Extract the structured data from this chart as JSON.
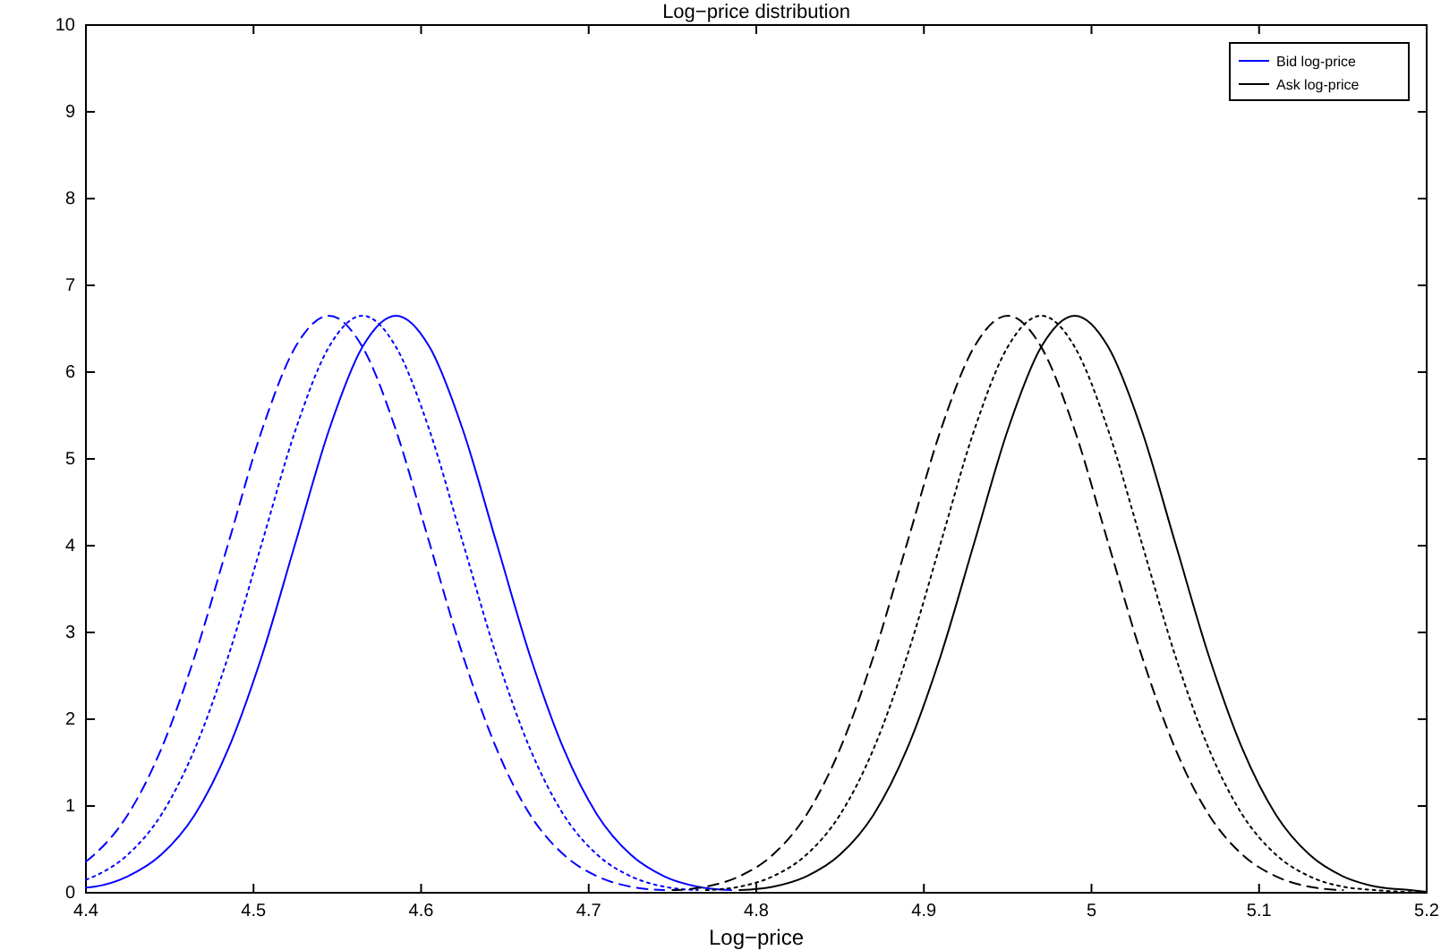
{
  "chart_data": {
    "type": "line",
    "title": "Log−price distribution",
    "xlabel": "Log−price",
    "xlim": [
      4.4,
      5.2
    ],
    "xticks": [
      4.4,
      4.5,
      4.6,
      4.7,
      4.8,
      4.9,
      5,
      5.1,
      5.2
    ],
    "ylim": [
      0,
      10
    ],
    "yticks": [
      0,
      1,
      2,
      3,
      4,
      5,
      6,
      7,
      8,
      9,
      10
    ],
    "grid": false,
    "legend": "top right",
    "marker": "none",
    "series": [
      {
        "name": "Bid log-price",
        "color": "#0000ff",
        "line_style": "solid",
        "x": [
          4.4,
          4.405,
          4.425,
          4.445,
          4.465,
          4.485,
          4.505,
          4.525,
          4.545,
          4.565,
          4.585,
          4.605,
          4.625,
          4.645,
          4.665,
          4.685,
          4.705,
          4.725,
          4.745,
          4.765,
          4.785
        ],
        "values": [
          0.06,
          0.07,
          0.19,
          0.44,
          0.9,
          1.66,
          2.73,
          4.03,
          5.33,
          6.29,
          6.65,
          6.29,
          5.33,
          4.03,
          2.73,
          1.66,
          0.9,
          0.44,
          0.19,
          0.07,
          0.03
        ]
      },
      {
        "color": "#0000ff",
        "line_style": "dotted",
        "x": [
          4.4,
          4.405,
          4.425,
          4.445,
          4.465,
          4.485,
          4.505,
          4.525,
          4.545,
          4.565,
          4.585,
          4.605,
          4.625,
          4.645,
          4.665,
          4.685,
          4.705,
          4.725,
          4.745,
          4.765
        ],
        "values": [
          0.15,
          0.19,
          0.44,
          0.9,
          1.66,
          2.73,
          4.03,
          5.33,
          6.29,
          6.65,
          6.29,
          5.33,
          4.03,
          2.73,
          1.66,
          0.9,
          0.44,
          0.19,
          0.07,
          0.03
        ]
      },
      {
        "color": "#0000ff",
        "line_style": "dashed",
        "x": [
          4.4,
          4.405,
          4.425,
          4.445,
          4.465,
          4.485,
          4.505,
          4.525,
          4.545,
          4.565,
          4.585,
          4.605,
          4.625,
          4.645,
          4.665,
          4.685,
          4.705,
          4.725,
          4.745
        ],
        "values": [
          0.36,
          0.44,
          0.9,
          1.66,
          2.73,
          4.03,
          5.33,
          6.29,
          6.65,
          6.29,
          5.33,
          4.03,
          2.73,
          1.66,
          0.9,
          0.44,
          0.19,
          0.07,
          0.03
        ]
      },
      {
        "name": "Ask log-price",
        "color": "#000000",
        "line_style": "solid",
        "x": [
          4.79,
          4.81,
          4.83,
          4.85,
          4.87,
          4.89,
          4.91,
          4.93,
          4.95,
          4.97,
          4.99,
          5.01,
          5.03,
          5.05,
          5.07,
          5.09,
          5.11,
          5.13,
          5.15,
          5.17,
          5.19,
          5.2
        ],
        "values": [
          0.03,
          0.07,
          0.19,
          0.44,
          0.9,
          1.66,
          2.73,
          4.03,
          5.33,
          6.29,
          6.65,
          6.29,
          5.33,
          4.03,
          2.73,
          1.66,
          0.9,
          0.44,
          0.19,
          0.07,
          0.03,
          0.01
        ]
      },
      {
        "color": "#000000",
        "line_style": "dotted",
        "x": [
          4.77,
          4.79,
          4.81,
          4.83,
          4.85,
          4.87,
          4.89,
          4.91,
          4.93,
          4.95,
          4.97,
          4.99,
          5.01,
          5.03,
          5.05,
          5.07,
          5.09,
          5.11,
          5.13,
          5.15,
          5.17,
          5.2
        ],
        "values": [
          0.03,
          0.07,
          0.19,
          0.44,
          0.9,
          1.66,
          2.73,
          4.03,
          5.33,
          6.29,
          6.65,
          6.29,
          5.33,
          4.03,
          2.73,
          1.66,
          0.9,
          0.44,
          0.19,
          0.07,
          0.03,
          0
        ]
      },
      {
        "color": "#000000",
        "line_style": "dashed",
        "x": [
          4.75,
          4.77,
          4.79,
          4.81,
          4.83,
          4.85,
          4.87,
          4.89,
          4.91,
          4.93,
          4.95,
          4.97,
          4.99,
          5.01,
          5.03,
          5.05,
          5.07,
          5.09,
          5.11,
          5.13,
          5.15
        ],
        "values": [
          0.03,
          0.07,
          0.19,
          0.44,
          0.9,
          1.66,
          2.73,
          4.03,
          5.33,
          6.29,
          6.65,
          6.29,
          5.33,
          4.03,
          2.73,
          1.66,
          0.9,
          0.44,
          0.19,
          0.07,
          0.03
        ]
      }
    ]
  }
}
